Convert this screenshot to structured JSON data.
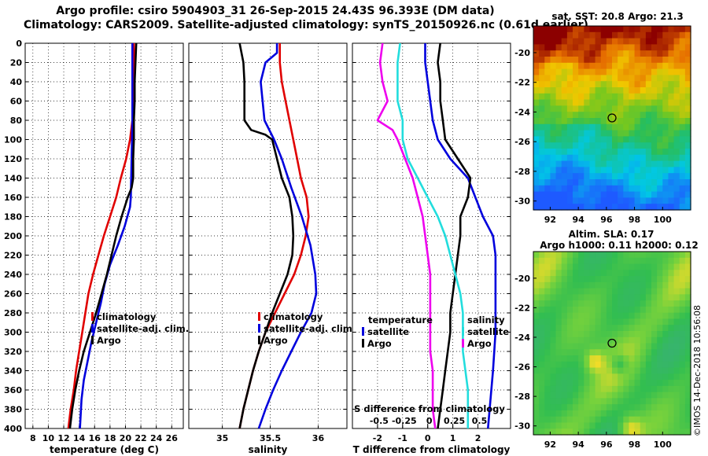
{
  "header": {
    "line1": "Argo profile: csiro 5904903_31 26-Sep-2015 24.43S 96.393E (DM data)",
    "line2": "Climatology: CARS2009. Satellite-adjusted climatology: synTS_20150926.nc (0.61d earlier)"
  },
  "colors": {
    "climatology": "#e00000",
    "satellite": "#0000dd",
    "argo": "#000000",
    "sat_salinity": "#22dddd",
    "magenta": "#ee00ee"
  },
  "chart_data": [
    {
      "type": "line",
      "name": "temperature",
      "xlabel": "temperature (deg C)",
      "ylabel": "depth",
      "xlim": [
        7,
        27.5
      ],
      "ylim": [
        0,
        400
      ],
      "xticks": [
        8,
        10,
        12,
        14,
        16,
        18,
        20,
        22,
        24,
        26
      ],
      "yticks": [
        0,
        20,
        40,
        60,
        80,
        100,
        120,
        140,
        160,
        180,
        200,
        220,
        240,
        260,
        280,
        300,
        320,
        340,
        360,
        380,
        400
      ],
      "grid": true,
      "legend": [
        "climatology",
        "satellite-adj. clim.",
        "Argo"
      ],
      "series": [
        {
          "name": "climatology",
          "color": "#e00000",
          "points": [
            [
              21.1,
              0
            ],
            [
              21.1,
              20
            ],
            [
              21.0,
              40
            ],
            [
              21.0,
              60
            ],
            [
              20.9,
              80
            ],
            [
              20.6,
              100
            ],
            [
              20.1,
              120
            ],
            [
              19.4,
              140
            ],
            [
              18.8,
              160
            ],
            [
              18.0,
              180
            ],
            [
              17.2,
              200
            ],
            [
              16.5,
              220
            ],
            [
              15.8,
              240
            ],
            [
              15.2,
              260
            ],
            [
              14.8,
              280
            ],
            [
              14.4,
              300
            ],
            [
              14.0,
              320
            ],
            [
              13.6,
              340
            ],
            [
              13.3,
              360
            ],
            [
              12.9,
              380
            ],
            [
              12.6,
              400
            ]
          ]
        },
        {
          "name": "satellite-adj. clim.",
          "color": "#0000dd",
          "points": [
            [
              20.9,
              0
            ],
            [
              20.9,
              40
            ],
            [
              20.9,
              80
            ],
            [
              20.8,
              120
            ],
            [
              20.7,
              160
            ],
            [
              20.6,
              170
            ],
            [
              19.9,
              190
            ],
            [
              19.0,
              210
            ],
            [
              18.0,
              230
            ],
            [
              17.3,
              250
            ],
            [
              16.8,
              270
            ],
            [
              16.2,
              290
            ],
            [
              15.6,
              310
            ],
            [
              15.1,
              330
            ],
            [
              14.6,
              350
            ],
            [
              14.3,
              370
            ],
            [
              14.1,
              400
            ]
          ]
        },
        {
          "name": "Argo",
          "color": "#000000",
          "points": [
            [
              21.4,
              0
            ],
            [
              21.3,
              20
            ],
            [
              21.2,
              40
            ],
            [
              21.2,
              60
            ],
            [
              21.1,
              80
            ],
            [
              21.1,
              100
            ],
            [
              21.0,
              120
            ],
            [
              21.0,
              140
            ],
            [
              20.8,
              150
            ],
            [
              20.3,
              160
            ],
            [
              19.5,
              180
            ],
            [
              18.8,
              200
            ],
            [
              18.2,
              220
            ],
            [
              17.6,
              240
            ],
            [
              16.9,
              260
            ],
            [
              16.2,
              280
            ],
            [
              15.4,
              300
            ],
            [
              14.6,
              320
            ],
            [
              14.0,
              340
            ],
            [
              13.5,
              360
            ],
            [
              13.1,
              380
            ],
            [
              12.8,
              400
            ]
          ]
        }
      ]
    },
    {
      "type": "line",
      "name": "salinity",
      "xlabel": "salinity",
      "ylabel": "depth",
      "xlim": [
        34.65,
        36.3
      ],
      "ylim": [
        0,
        400
      ],
      "xticks": [
        35,
        35.5,
        36
      ],
      "grid": true,
      "legend": [
        "climatology",
        "satellite-adj. clim.",
        "Argo"
      ],
      "series": [
        {
          "name": "climatology",
          "color": "#e00000",
          "points": [
            [
              35.6,
              0
            ],
            [
              35.6,
              20
            ],
            [
              35.62,
              40
            ],
            [
              35.66,
              60
            ],
            [
              35.7,
              80
            ],
            [
              35.74,
              100
            ],
            [
              35.78,
              120
            ],
            [
              35.82,
              140
            ],
            [
              35.88,
              160
            ],
            [
              35.9,
              180
            ],
            [
              35.87,
              200
            ],
            [
              35.82,
              220
            ],
            [
              35.75,
              240
            ],
            [
              35.65,
              260
            ],
            [
              35.55,
              280
            ],
            [
              35.45,
              300
            ],
            [
              35.38,
              320
            ],
            [
              35.32,
              340
            ],
            [
              35.27,
              360
            ],
            [
              35.22,
              380
            ],
            [
              35.18,
              400
            ]
          ]
        },
        {
          "name": "satellite-adj. clim.",
          "color": "#0000dd",
          "points": [
            [
              35.57,
              0
            ],
            [
              35.57,
              10
            ],
            [
              35.45,
              20
            ],
            [
              35.4,
              40
            ],
            [
              35.42,
              60
            ],
            [
              35.44,
              80
            ],
            [
              35.54,
              100
            ],
            [
              35.62,
              120
            ],
            [
              35.72,
              150
            ],
            [
              35.83,
              180
            ],
            [
              35.92,
              210
            ],
            [
              35.97,
              240
            ],
            [
              35.98,
              260
            ],
            [
              35.93,
              280
            ],
            [
              35.82,
              300
            ],
            [
              35.72,
              320
            ],
            [
              35.62,
              340
            ],
            [
              35.53,
              360
            ],
            [
              35.45,
              380
            ],
            [
              35.38,
              400
            ]
          ]
        },
        {
          "name": "Argo",
          "color": "#000000",
          "points": [
            [
              35.18,
              0
            ],
            [
              35.22,
              20
            ],
            [
              35.23,
              40
            ],
            [
              35.23,
              60
            ],
            [
              35.23,
              80
            ],
            [
              35.3,
              90
            ],
            [
              35.45,
              95
            ],
            [
              35.52,
              100
            ],
            [
              35.57,
              120
            ],
            [
              35.62,
              140
            ],
            [
              35.7,
              160
            ],
            [
              35.73,
              180
            ],
            [
              35.74,
              200
            ],
            [
              35.73,
              220
            ],
            [
              35.68,
              240
            ],
            [
              35.6,
              260
            ],
            [
              35.52,
              280
            ],
            [
              35.45,
              300
            ],
            [
              35.38,
              320
            ],
            [
              35.32,
              340
            ],
            [
              35.27,
              360
            ],
            [
              35.22,
              380
            ],
            [
              35.18,
              400
            ]
          ]
        }
      ]
    },
    {
      "type": "line",
      "name": "difference",
      "xlabel": "T difference from climatology",
      "xlabel2": "S difference from climatology",
      "ylabel": "depth",
      "xlim": [
        -3,
        3.3
      ],
      "ylim": [
        0,
        400
      ],
      "xticks": [
        -2,
        -1,
        0,
        1,
        2
      ],
      "xticks2": [
        -0.5,
        -0.25,
        0,
        0.25,
        0.5
      ],
      "xticks2_labels": [
        "-0.5",
        "-0.25",
        "0",
        "0.25",
        "0.5"
      ],
      "grid": true,
      "legend_left_title": "temperature",
      "legend_left": [
        "satellite",
        "Argo"
      ],
      "legend_right_title": "salinity",
      "legend_right": [
        "satellite",
        "Argo"
      ],
      "series": [
        {
          "name": "T satellite",
          "color": "#0000dd",
          "points": [
            [
              -0.1,
              0
            ],
            [
              -0.1,
              20
            ],
            [
              0.0,
              40
            ],
            [
              0.1,
              60
            ],
            [
              0.2,
              80
            ],
            [
              0.4,
              100
            ],
            [
              0.9,
              120
            ],
            [
              1.6,
              140
            ],
            [
              1.9,
              160
            ],
            [
              2.2,
              180
            ],
            [
              2.6,
              200
            ],
            [
              2.7,
              220
            ],
            [
              2.7,
              260
            ],
            [
              2.7,
              300
            ],
            [
              2.6,
              340
            ],
            [
              2.5,
              370
            ],
            [
              2.4,
              400
            ]
          ]
        },
        {
          "name": "T Argo",
          "color": "#000000",
          "points": [
            [
              0.5,
              0
            ],
            [
              0.4,
              20
            ],
            [
              0.5,
              40
            ],
            [
              0.5,
              60
            ],
            [
              0.6,
              80
            ],
            [
              0.7,
              100
            ],
            [
              1.2,
              120
            ],
            [
              1.7,
              140
            ],
            [
              1.6,
              160
            ],
            [
              1.3,
              180
            ],
            [
              1.3,
              200
            ],
            [
              1.2,
              220
            ],
            [
              1.1,
              240
            ],
            [
              1.0,
              260
            ],
            [
              0.9,
              280
            ],
            [
              0.9,
              300
            ],
            [
              0.8,
              320
            ],
            [
              0.7,
              340
            ],
            [
              0.6,
              360
            ],
            [
              0.5,
              380
            ],
            [
              0.4,
              400
            ]
          ]
        },
        {
          "name": "S satellite",
          "color": "#22dddd",
          "points": [
            [
              -1.1,
              0
            ],
            [
              -1.2,
              20
            ],
            [
              -1.2,
              40
            ],
            [
              -1.2,
              60
            ],
            [
              -1.0,
              80
            ],
            [
              -1.0,
              100
            ],
            [
              -0.8,
              120
            ],
            [
              -0.4,
              140
            ],
            [
              0.0,
              160
            ],
            [
              0.4,
              180
            ],
            [
              0.7,
              200
            ],
            [
              0.9,
              220
            ],
            [
              1.1,
              240
            ],
            [
              1.3,
              260
            ],
            [
              1.4,
              280
            ],
            [
              1.4,
              300
            ],
            [
              1.4,
              320
            ],
            [
              1.5,
              340
            ],
            [
              1.6,
              360
            ],
            [
              1.6,
              380
            ],
            [
              1.6,
              400
            ]
          ]
        },
        {
          "name": "S Argo",
          "color": "#ee00ee",
          "points": [
            [
              -1.8,
              0
            ],
            [
              -1.9,
              20
            ],
            [
              -1.8,
              40
            ],
            [
              -1.6,
              60
            ],
            [
              -2.0,
              80
            ],
            [
              -1.4,
              90
            ],
            [
              -1.2,
              100
            ],
            [
              -0.9,
              120
            ],
            [
              -0.6,
              140
            ],
            [
              -0.4,
              160
            ],
            [
              -0.2,
              180
            ],
            [
              -0.1,
              200
            ],
            [
              0.0,
              220
            ],
            [
              0.1,
              240
            ],
            [
              0.1,
              260
            ],
            [
              0.1,
              280
            ],
            [
              0.1,
              300
            ],
            [
              0.1,
              320
            ],
            [
              0.2,
              340
            ],
            [
              0.2,
              360
            ],
            [
              0.2,
              380
            ],
            [
              0.3,
              400
            ]
          ]
        }
      ]
    }
  ],
  "maps": {
    "sat_sst": {
      "title": "sat. SST: 20.8 Argo: 21.3",
      "xticks": [
        "92",
        "94",
        "96",
        "98",
        "100"
      ],
      "yticks": [
        "-20",
        "-22",
        "-24",
        "-26",
        "-28",
        "-30"
      ],
      "marker": {
        "lon": 96.4,
        "lat": -24.4
      }
    },
    "altimetry": {
      "title1": "Altim. SLA: 0.17",
      "title2": "Argo h1000: 0.11 h2000: 0.12",
      "xticks": [
        "92",
        "94",
        "96",
        "98",
        "100"
      ],
      "yticks": [
        "-20",
        "-22",
        "-24",
        "-26",
        "-28",
        "-30"
      ],
      "marker": {
        "lon": 96.4,
        "lat": -24.4
      }
    }
  },
  "stamp": "©IMOS 14-Dec-2018 10:56:08"
}
